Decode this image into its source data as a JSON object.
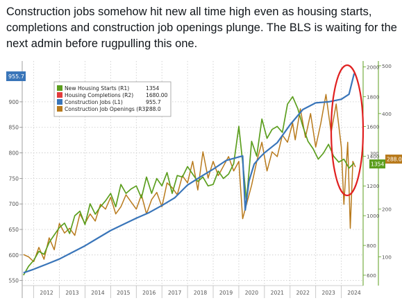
{
  "post": {
    "text": "Construction jobs somehow hit new all time high even as housing starts, completions and construction job openings plunge. The BLS is waiting for the next admin before rugpulling this one."
  },
  "colors": {
    "starts": "#5b9e1e",
    "completions": "#e33b3b",
    "jobs": "#3975b9",
    "openings": "#b87a1c",
    "annotation": "#e02020",
    "grid": "#c8c8c8"
  },
  "chart_data": {
    "type": "line",
    "x_ticks": [
      "2012",
      "2013",
      "2014",
      "2015",
      "2016",
      "2017",
      "2018",
      "2019",
      "2020",
      "2021",
      "2022",
      "2023",
      "2024"
    ],
    "axes": {
      "L1": {
        "ylim": [
          540,
          980
        ],
        "ticks": [
          550,
          600,
          650,
          700,
          750,
          800,
          850,
          900
        ]
      },
      "R1": {
        "ylim": [
          530,
          2040
        ],
        "ticks": [
          600,
          800,
          1000,
          1200,
          1400,
          1600,
          1800,
          2000
        ]
      },
      "R3": {
        "ylim": [
          40,
          510
        ],
        "ticks": [
          100,
          200,
          300,
          400,
          500
        ]
      }
    },
    "legend": {
      "placement": "top-left",
      "entries": [
        {
          "label": "New Housing Starts (R1)",
          "value": "1354"
        },
        {
          "label": "Housing Completions (R2)",
          "value": "1680.00"
        },
        {
          "label": "Construction Jobs (L1)",
          "value": "955.7"
        },
        {
          "label": "Construction Job Openings (R3)",
          "value": "288.0"
        }
      ]
    },
    "last_value_labels": {
      "jobs": "955.7",
      "starts": "1354",
      "openings": "288.0",
      "r3_partial": "300"
    },
    "series": [
      {
        "name": "Construction Jobs (L1)",
        "axis": "L1",
        "x": [
          2011.6,
          2012.0,
          2012.5,
          2013.0,
          2013.5,
          2014.0,
          2014.5,
          2015.0,
          2015.5,
          2016.0,
          2016.5,
          2017.0,
          2017.5,
          2018.0,
          2018.5,
          2019.0,
          2019.5,
          2020.0,
          2020.15,
          2020.25,
          2020.4,
          2020.6,
          2020.8,
          2021.0,
          2021.5,
          2022.0,
          2022.5,
          2023.0,
          2023.5,
          2024.0,
          2024.3,
          2024.5
        ],
        "y": [
          565,
          572,
          582,
          592,
          605,
          618,
          633,
          648,
          660,
          672,
          683,
          697,
          712,
          737,
          753,
          768,
          785,
          792,
          794,
          688,
          745,
          778,
          790,
          800,
          820,
          855,
          885,
          898,
          900,
          905,
          915,
          955.7
        ]
      },
      {
        "name": "New Housing Starts (R1)",
        "axis": "R1",
        "x": [
          2011.6,
          2011.8,
          2012.0,
          2012.2,
          2012.4,
          2012.6,
          2012.8,
          2013.0,
          2013.2,
          2013.4,
          2013.6,
          2013.8,
          2014.0,
          2014.2,
          2014.4,
          2014.6,
          2014.8,
          2015.0,
          2015.2,
          2015.4,
          2015.6,
          2015.8,
          2016.0,
          2016.2,
          2016.4,
          2016.6,
          2016.8,
          2017.0,
          2017.2,
          2017.4,
          2017.6,
          2017.8,
          2018.0,
          2018.2,
          2018.4,
          2018.6,
          2018.8,
          2019.0,
          2019.2,
          2019.4,
          2019.6,
          2019.8,
          2020.0,
          2020.2,
          2020.3,
          2020.5,
          2020.7,
          2020.9,
          2021.1,
          2021.3,
          2021.5,
          2021.7,
          2021.9,
          2022.1,
          2022.3,
          2022.5,
          2022.7,
          2022.9,
          2023.1,
          2023.3,
          2023.5,
          2023.7,
          2023.9,
          2024.1,
          2024.3,
          2024.5
        ],
        "y": [
          600,
          660,
          700,
          760,
          740,
          820,
          870,
          920,
          950,
          880,
          1000,
          1030,
          940,
          1080,
          1010,
          1060,
          1100,
          1150,
          1060,
          1210,
          1150,
          1180,
          1200,
          1120,
          1260,
          1150,
          1250,
          1200,
          1290,
          1150,
          1270,
          1260,
          1330,
          1280,
          1230,
          1260,
          1200,
          1210,
          1300,
          1250,
          1280,
          1350,
          1600,
          1280,
          1100,
          1500,
          1400,
          1650,
          1520,
          1580,
          1600,
          1560,
          1750,
          1800,
          1720,
          1600,
          1500,
          1450,
          1380,
          1420,
          1480,
          1400,
          1360,
          1380,
          1320,
          1354
        ]
      },
      {
        "name": "Construction Job Openings (R3)",
        "axis": "R3",
        "x": [
          2011.6,
          2011.8,
          2012.0,
          2012.2,
          2012.4,
          2012.6,
          2012.8,
          2013.0,
          2013.2,
          2013.4,
          2013.6,
          2013.8,
          2014.0,
          2014.2,
          2014.4,
          2014.6,
          2014.8,
          2015.0,
          2015.2,
          2015.4,
          2015.6,
          2015.8,
          2016.0,
          2016.2,
          2016.4,
          2016.6,
          2016.8,
          2017.0,
          2017.2,
          2017.4,
          2017.6,
          2017.8,
          2018.0,
          2018.2,
          2018.4,
          2018.6,
          2018.8,
          2019.0,
          2019.2,
          2019.4,
          2019.6,
          2019.8,
          2020.0,
          2020.15,
          2020.3,
          2020.5,
          2020.7,
          2020.9,
          2021.1,
          2021.3,
          2021.5,
          2021.7,
          2021.9,
          2022.1,
          2022.2,
          2022.4,
          2022.6,
          2022.8,
          2023.0,
          2023.2,
          2023.4,
          2023.6,
          2023.8,
          2024.0,
          2024.1,
          2024.25,
          2024.35,
          2024.45,
          2024.55
        ],
        "y": [
          105,
          100,
          90,
          120,
          95,
          140,
          115,
          170,
          150,
          160,
          145,
          190,
          170,
          190,
          175,
          210,
          200,
          225,
          190,
          205,
          230,
          215,
          200,
          230,
          190,
          220,
          235,
          205,
          255,
          245,
          230,
          270,
          255,
          300,
          240,
          320,
          265,
          300,
          270,
          290,
          310,
          280,
          300,
          180,
          210,
          250,
          300,
          340,
          280,
          320,
          310,
          355,
          340,
          380,
          345,
          410,
          350,
          400,
          330,
          380,
          440,
          360,
          420,
          330,
          210,
          340,
          160,
          300,
          288
        ]
      }
    ]
  }
}
